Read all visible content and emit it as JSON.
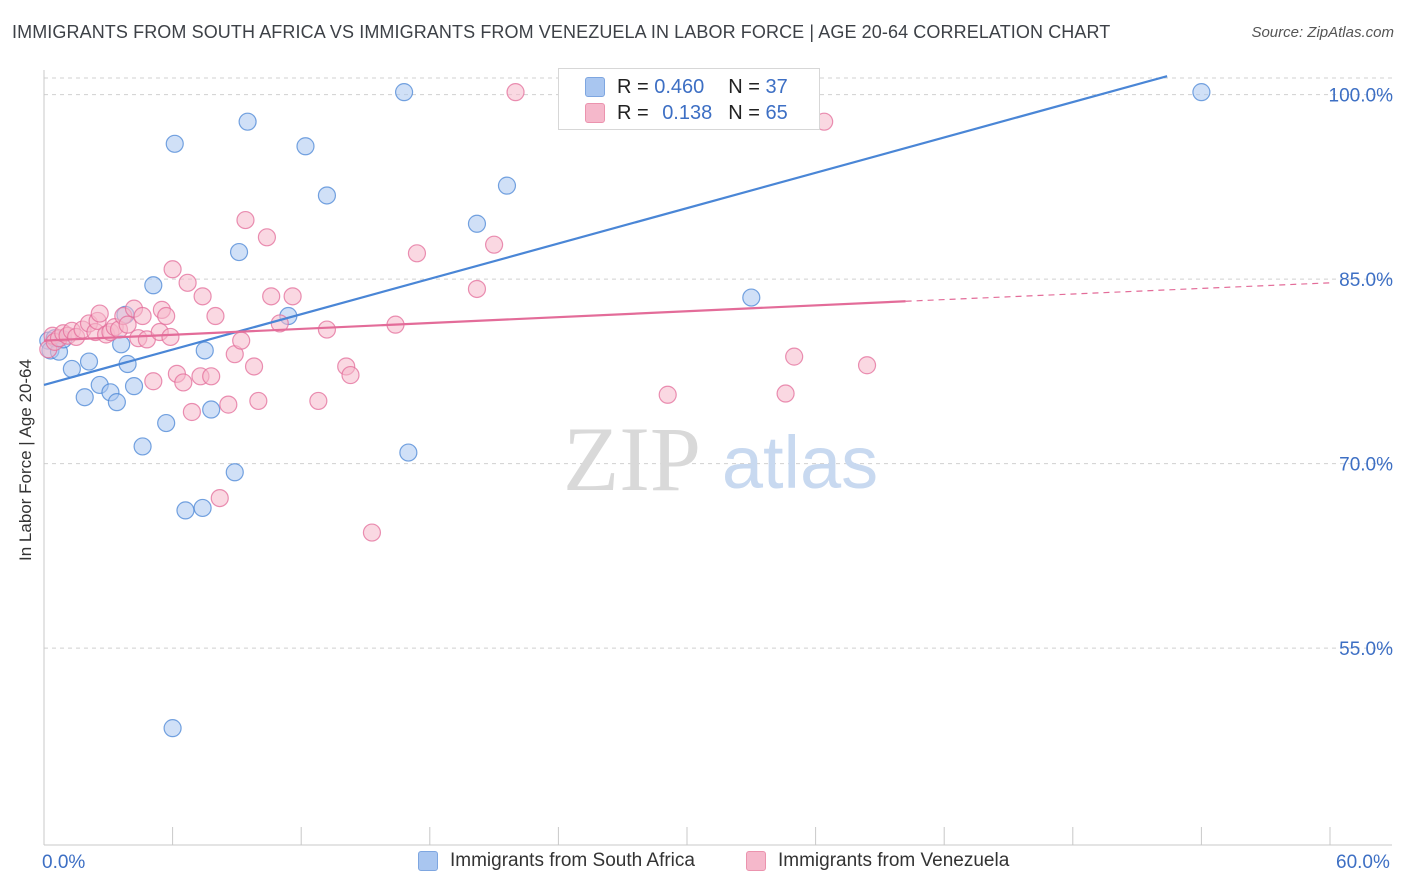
{
  "title": "IMMIGRANTS FROM SOUTH AFRICA VS IMMIGRANTS FROM VENEZUELA IN LABOR FORCE | AGE 20-64 CORRELATION CHART",
  "source": "Source: ZipAtlas.com",
  "watermark": {
    "zip": "ZIP",
    "atlas": "atlas"
  },
  "legend": {
    "r_label": "R =",
    "n_label": "N =",
    "rows": [
      {
        "r": "0.460",
        "n": "37",
        "color": "#a9c6f0"
      },
      {
        "r": "0.138",
        "n": "65",
        "color": "#f5b8cb"
      }
    ]
  },
  "chart_data": {
    "type": "scatter",
    "title": "IMMIGRANTS FROM SOUTH AFRICA VS IMMIGRANTS FROM VENEZUELA IN LABOR FORCE | AGE 20-64 CORRELATION CHART",
    "xlabel": "",
    "ylabel": "In Labor Force | Age 20-64",
    "xlim": [
      0,
      60
    ],
    "ylim": [
      39.0,
      102.0
    ],
    "x_tick_labels": [
      "0.0%",
      "60.0%"
    ],
    "y_ticks": [
      55.0,
      70.0,
      85.0,
      100.0
    ],
    "y_tick_labels": [
      "55.0%",
      "70.0%",
      "85.0%",
      "100.0%"
    ],
    "grid": "horizontal dashed",
    "legend_position": "top-center",
    "series": [
      {
        "name": "Immigrants from South Africa",
        "color": "#4a86d6",
        "fill": "#a9c6f0",
        "trend": {
          "x": [
            0,
            52.4
          ],
          "y": [
            76.4,
            101.5
          ],
          "dash_from": null
        },
        "points": [
          [
            0.2,
            80.0
          ],
          [
            0.3,
            79.2
          ],
          [
            0.5,
            80.2
          ],
          [
            0.7,
            79.1
          ],
          [
            0.9,
            80.1
          ],
          [
            1.3,
            77.7
          ],
          [
            1.9,
            75.4
          ],
          [
            2.1,
            78.3
          ],
          [
            2.6,
            76.4
          ],
          [
            3.1,
            75.8
          ],
          [
            3.4,
            75.0
          ],
          [
            3.6,
            79.7
          ],
          [
            3.8,
            82.1
          ],
          [
            3.9,
            78.1
          ],
          [
            4.2,
            76.3
          ],
          [
            4.6,
            71.4
          ],
          [
            5.1,
            84.5
          ],
          [
            5.7,
            73.3
          ],
          [
            6.0,
            48.5
          ],
          [
            6.1,
            96.0
          ],
          [
            6.6,
            66.2
          ],
          [
            7.4,
            66.4
          ],
          [
            7.5,
            79.2
          ],
          [
            7.8,
            74.4
          ],
          [
            8.9,
            69.3
          ],
          [
            9.1,
            87.2
          ],
          [
            9.5,
            97.8
          ],
          [
            11.4,
            82.0
          ],
          [
            12.2,
            95.8
          ],
          [
            13.2,
            91.8
          ],
          [
            16.8,
            100.2
          ],
          [
            17.0,
            70.9
          ],
          [
            20.2,
            89.5
          ],
          [
            21.6,
            92.6
          ],
          [
            33.0,
            83.5
          ],
          [
            54.0,
            100.2
          ]
        ]
      },
      {
        "name": "Immigrants from Venezuela",
        "color": "#e36c99",
        "fill": "#f5b8cb",
        "trend": {
          "x": [
            0,
            40.2
          ],
          "y": [
            80.0,
            83.2
          ],
          "dash_from": 40.2,
          "dash_to": [
            60,
            84.7
          ]
        },
        "points": [
          [
            0.2,
            79.3
          ],
          [
            0.4,
            80.4
          ],
          [
            0.5,
            79.9
          ],
          [
            0.7,
            80.2
          ],
          [
            0.9,
            80.6
          ],
          [
            1.1,
            80.4
          ],
          [
            1.3,
            80.8
          ],
          [
            1.5,
            80.3
          ],
          [
            1.8,
            80.9
          ],
          [
            2.1,
            81.4
          ],
          [
            2.4,
            80.7
          ],
          [
            2.5,
            81.6
          ],
          [
            2.6,
            82.2
          ],
          [
            2.9,
            80.5
          ],
          [
            3.1,
            80.7
          ],
          [
            3.3,
            81.1
          ],
          [
            3.5,
            80.9
          ],
          [
            3.7,
            82.0
          ],
          [
            3.9,
            81.3
          ],
          [
            4.2,
            82.6
          ],
          [
            4.4,
            80.2
          ],
          [
            4.6,
            82.0
          ],
          [
            4.8,
            80.1
          ],
          [
            5.1,
            76.7
          ],
          [
            5.4,
            80.7
          ],
          [
            5.5,
            82.5
          ],
          [
            5.7,
            82.0
          ],
          [
            5.9,
            80.3
          ],
          [
            6.0,
            85.8
          ],
          [
            6.2,
            77.3
          ],
          [
            6.5,
            76.6
          ],
          [
            6.7,
            84.7
          ],
          [
            6.9,
            74.2
          ],
          [
            7.3,
            77.1
          ],
          [
            7.4,
            83.6
          ],
          [
            7.8,
            77.1
          ],
          [
            8.0,
            82.0
          ],
          [
            8.2,
            67.2
          ],
          [
            8.6,
            74.8
          ],
          [
            8.9,
            78.9
          ],
          [
            9.2,
            80.0
          ],
          [
            9.4,
            89.8
          ],
          [
            9.8,
            77.9
          ],
          [
            10.0,
            75.1
          ],
          [
            10.4,
            88.4
          ],
          [
            10.6,
            83.6
          ],
          [
            11.0,
            81.4
          ],
          [
            11.6,
            83.6
          ],
          [
            12.8,
            75.1
          ],
          [
            13.2,
            80.9
          ],
          [
            14.1,
            77.9
          ],
          [
            14.3,
            77.2
          ],
          [
            15.3,
            64.4
          ],
          [
            16.4,
            81.3
          ],
          [
            17.4,
            87.1
          ],
          [
            20.2,
            84.2
          ],
          [
            21.0,
            87.8
          ],
          [
            22.0,
            100.2
          ],
          [
            29.1,
            75.6
          ],
          [
            34.6,
            75.7
          ],
          [
            35.0,
            78.7
          ],
          [
            36.4,
            97.8
          ],
          [
            38.4,
            78.0
          ]
        ]
      }
    ]
  },
  "bottom_legend": [
    {
      "label": "Immigrants from South Africa",
      "color": "#a9c6f0",
      "border": "#7ea6e0"
    },
    {
      "label": "Immigrants from Venezuela",
      "color": "#f5b8cb",
      "border": "#eb93ae"
    }
  ]
}
